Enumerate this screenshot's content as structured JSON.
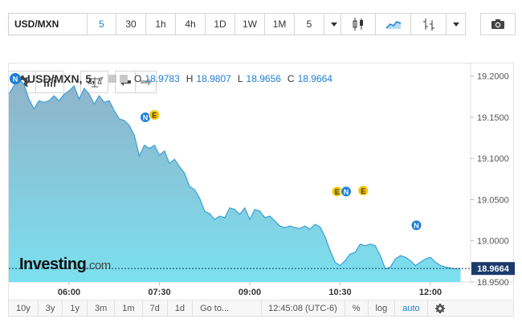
{
  "toolbar": {
    "symbol": "USD/MXN",
    "timeframes": [
      "5",
      "30",
      "1h",
      "4h",
      "1D",
      "1W",
      "1M"
    ],
    "interval_select": "5",
    "active_timeframe": "5"
  },
  "legend": {
    "title": "USD/MXN, 5,",
    "o_label": "O",
    "o_value": "18.9783",
    "h_label": "H",
    "h_value": "18.9807",
    "l_label": "L",
    "l_value": "18.9656",
    "c_label": "C",
    "c_value": "18.9664"
  },
  "logo": {
    "text": "Investing",
    "suffix": ".com"
  },
  "bottom": {
    "ranges": [
      "10y",
      "3y",
      "1y",
      "3m",
      "1m",
      "7d",
      "1d"
    ],
    "goto": "Go to...",
    "clock": "12:45:08 (UTC-6)",
    "percent": "%",
    "log": "log",
    "auto": "auto"
  },
  "colors": {
    "line": "#3a9fd6",
    "fill_top": "#8fb3c9",
    "fill_bottom": "#7be0ef",
    "last_price_bg": "#1a3a6b",
    "event_n": "#1c7ed6",
    "event_e": "#f3c300"
  },
  "chart_data": {
    "type": "area",
    "ylim": [
      18.95,
      19.2152
    ],
    "y_ticks": [
      "19.2000",
      "19.1500",
      "19.1000",
      "19.0500",
      "19.0000",
      "18.9500"
    ],
    "x_ticks": [
      "06:00",
      "07:30",
      "09:00",
      "10:30",
      "12:00"
    ],
    "x_tick_minutes": [
      360,
      450,
      540,
      630,
      720
    ],
    "xlim_minutes": [
      300,
      760
    ],
    "last_price": "18.9664",
    "series": [
      {
        "x_minutes": [
          300,
          305,
          310,
          315,
          320,
          325,
          330,
          335,
          340,
          345,
          350,
          355,
          360,
          365,
          370,
          375,
          380,
          385,
          390,
          395,
          400,
          405,
          410,
          415,
          420,
          425,
          430,
          435,
          440,
          445,
          450,
          455,
          460,
          465,
          470,
          475,
          480,
          485,
          490,
          495,
          500,
          505,
          510,
          515,
          520,
          525,
          530,
          535,
          540,
          545,
          550,
          555,
          560,
          565,
          570,
          575,
          580,
          585,
          590,
          595,
          600,
          605,
          610,
          615,
          620,
          625,
          630,
          635,
          640,
          645,
          650,
          655,
          660,
          665,
          670,
          675,
          680,
          685,
          690,
          695,
          700,
          705,
          710,
          715,
          720,
          725,
          730,
          735,
          740,
          745,
          750
        ],
        "values": [
          19.178,
          19.188,
          19.196,
          19.19,
          19.172,
          19.16,
          19.17,
          19.168,
          19.17,
          19.176,
          19.17,
          19.178,
          19.182,
          19.188,
          19.172,
          19.185,
          19.178,
          19.166,
          19.176,
          19.168,
          19.17,
          19.158,
          19.148,
          19.146,
          19.14,
          19.128,
          19.103,
          19.116,
          19.112,
          19.116,
          19.104,
          19.109,
          19.094,
          19.099,
          19.09,
          19.082,
          19.066,
          19.062,
          19.052,
          19.036,
          19.033,
          19.026,
          19.03,
          19.028,
          19.04,
          19.038,
          19.032,
          19.04,
          19.026,
          19.038,
          19.036,
          19.028,
          19.03,
          19.024,
          19.018,
          19.016,
          19.018,
          19.016,
          19.015,
          19.018,
          19.014,
          19.02,
          19.017,
          19.005,
          18.988,
          18.974,
          18.97,
          18.976,
          18.984,
          18.986,
          18.996,
          18.994,
          18.996,
          18.994,
          18.982,
          18.966,
          18.968,
          18.978,
          18.982,
          18.98,
          18.976,
          18.97,
          18.974,
          18.978,
          18.98,
          18.974,
          18.97,
          18.968,
          18.967,
          18.966,
          18.9664
        ]
      }
    ],
    "events": [
      {
        "type": "N",
        "x_minutes": 436,
        "value": 19.144
      },
      {
        "type": "E",
        "x_minutes": 445,
        "value": 19.147
      },
      {
        "type": "E",
        "x_minutes": 627,
        "value": 19.054
      },
      {
        "type": "N",
        "x_minutes": 636,
        "value": 19.054
      },
      {
        "type": "E",
        "x_minutes": 653,
        "value": 19.055
      },
      {
        "type": "N",
        "x_minutes": 706,
        "value": 19.013
      }
    ],
    "grid": false
  }
}
